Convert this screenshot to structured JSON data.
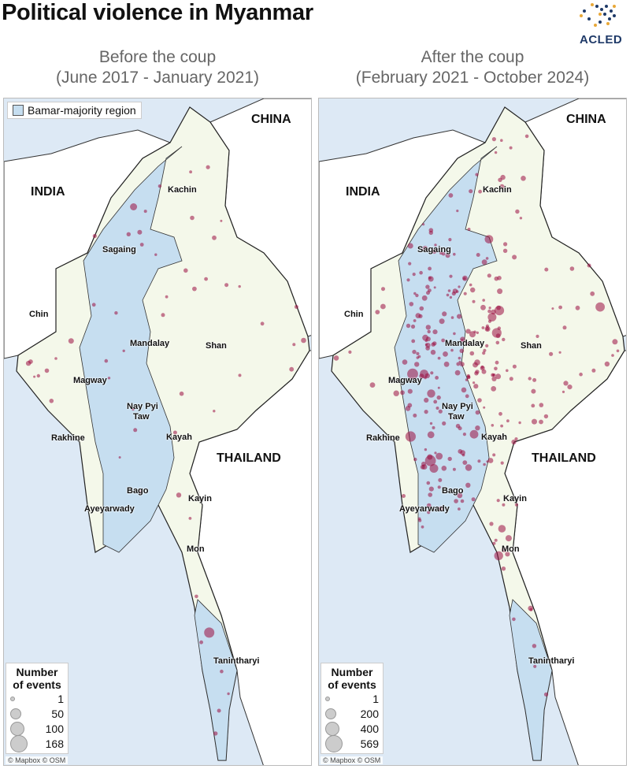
{
  "title": "Political violence in Myanmar",
  "logo": {
    "text": "ACLED"
  },
  "colors": {
    "event_dot": "#9b0d3f",
    "bamar_region": "#c6def0",
    "other_region": "#f4f8ea",
    "water": "#dde9f5"
  },
  "panels": [
    {
      "subtitle1": "Before the coup",
      "subtitle2": "(June 2017 - January 2021)",
      "region_key": "Bamar-majority region",
      "legend": {
        "title1": "Number",
        "title2": "of events",
        "values": [
          "1",
          "50",
          "100",
          "168"
        ]
      },
      "credit": "© Mapbox © OSM"
    },
    {
      "subtitle1": "After the coup",
      "subtitle2": "(February 2021 - October 2024)",
      "legend": {
        "title1": "Number",
        "title2": "of events",
        "values": [
          "1",
          "200",
          "400",
          "569"
        ]
      },
      "credit": "© Mapbox © OSM"
    }
  ],
  "countries": {
    "china": "CHINA",
    "india": "INDIA",
    "thailand": "THAILAND"
  },
  "regions": {
    "kachin": "Kachin",
    "sagaing": "Sagaing",
    "chin": "Chin",
    "mandalay": "Mandalay",
    "shan": "Shan",
    "magway": "Magway",
    "naypyitaw1": "Nay Pyi",
    "naypyitaw2": "Taw",
    "rakhine": "Rakhine",
    "kayah": "Kayah",
    "bago": "Bago",
    "kayin": "Kayin",
    "ayeyarwady": "Ayeyarwady",
    "mon": "Mon",
    "tanintharyi": "Tanintharyi"
  }
}
